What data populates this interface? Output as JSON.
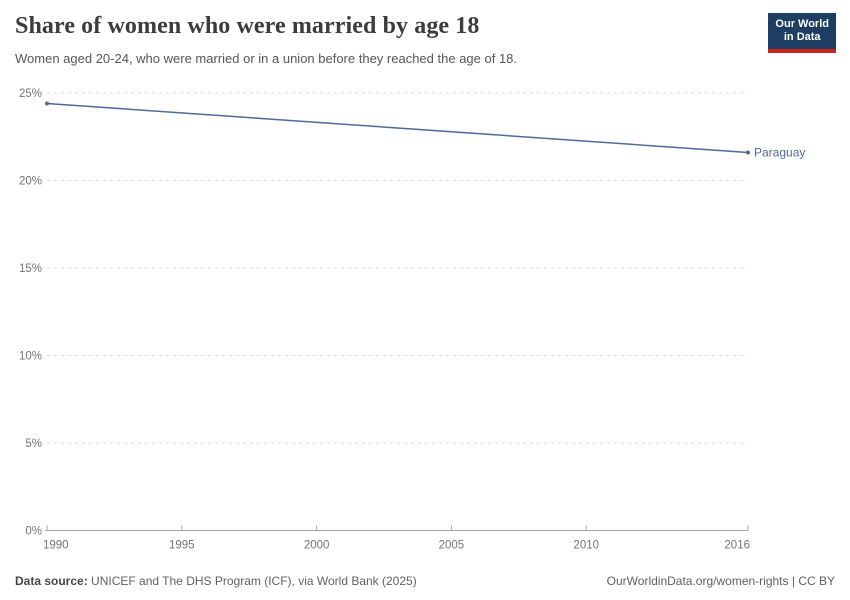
{
  "logo": {
    "line1": "Our World",
    "line2": "in Data"
  },
  "footer": {
    "source_label": "Data source:",
    "source_text": " UNICEF and The DHS Program (ICF), via World Bank (2025)",
    "url": "OurWorldinData.org/women-rights",
    "separator": " | ",
    "license": "CC BY"
  },
  "colors": {
    "line": "#4C6A9C",
    "logo_bg": "#1D3D63",
    "logo_bar": "#CD261F",
    "grid": "#DDDDDD",
    "axis": "#A5A5A5",
    "tick_text": "#737373",
    "title_text": "#3C3C3C",
    "subtitle_text": "#565656",
    "footer_text": "#616161"
  },
  "chart_data": {
    "type": "line",
    "title": "Share of women who were married by age 18",
    "subtitle": "Women aged 20-24, who were married or in a union before they reached the age of 18.",
    "xlabel": "",
    "ylabel": "",
    "xlim": [
      1990,
      2016
    ],
    "ylim": [
      0,
      25
    ],
    "x_ticks": [
      1990,
      1995,
      2000,
      2005,
      2010,
      2016
    ],
    "x_tick_labels": [
      "1990",
      "1995",
      "2000",
      "2005",
      "2010",
      "2016"
    ],
    "y_ticks": [
      0,
      5,
      10,
      15,
      20,
      25
    ],
    "y_tick_labels": [
      "0%",
      "5%",
      "10%",
      "15%",
      "20%",
      "25%"
    ],
    "grid": "horizontal-dashed",
    "legend_position": "end-of-line-label",
    "series": [
      {
        "name": "Paraguay",
        "color": "#4C6A9C",
        "points": [
          [
            1990,
            24.4
          ],
          [
            2016,
            21.6
          ]
        ]
      }
    ]
  }
}
